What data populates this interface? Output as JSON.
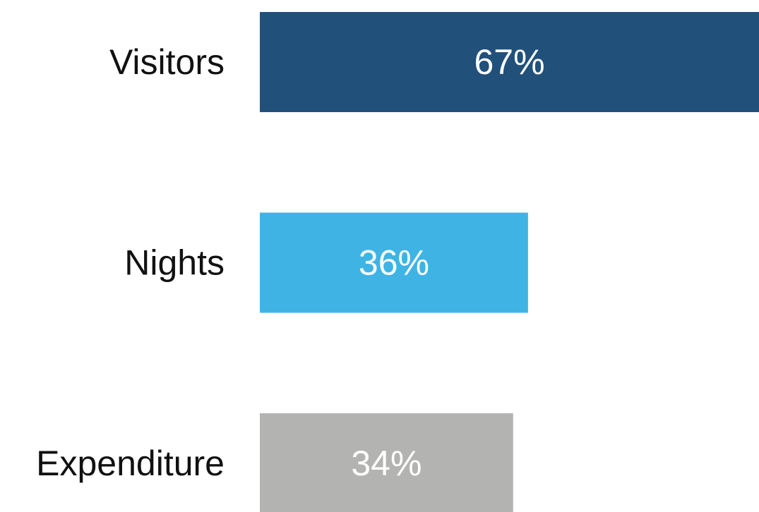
{
  "chart_data": {
    "type": "bar",
    "orientation": "horizontal",
    "categories": [
      "Visitors",
      "Nights",
      "Expenditure"
    ],
    "values": [
      67,
      36,
      34
    ],
    "value_labels": [
      "67%",
      "36%",
      "34%"
    ],
    "colors": [
      "#21507a",
      "#3fb4e4",
      "#b3b3b2"
    ],
    "title": "",
    "xlabel": "",
    "ylabel": "",
    "xlim": [
      0,
      67
    ],
    "grid": false,
    "legend": "none"
  }
}
